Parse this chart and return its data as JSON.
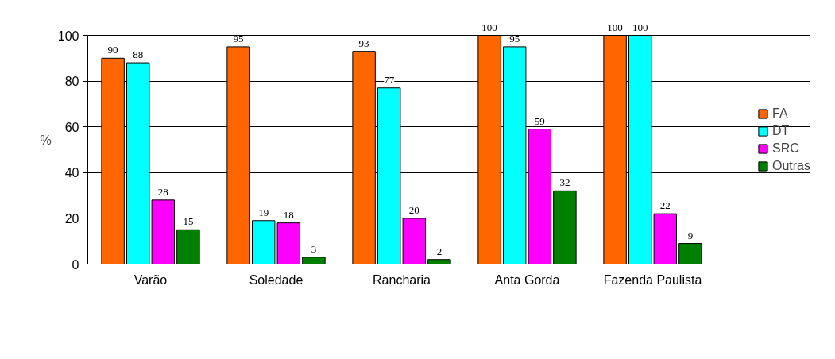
{
  "chart_data": {
    "type": "bar",
    "ylabel": "%",
    "categories": [
      "Varão",
      "Soledade",
      "Rancharia",
      "Anta Gorda",
      "Fazenda Paulista"
    ],
    "series": [
      {
        "name": "FA",
        "color": "#ff6600",
        "values": [
          90,
          95,
          93,
          100,
          100
        ]
      },
      {
        "name": "DT",
        "color": "#00ffff",
        "values": [
          88,
          19,
          77,
          95,
          100
        ]
      },
      {
        "name": "SRC",
        "color": "#ff00ff",
        "values": [
          28,
          18,
          20,
          59,
          22
        ]
      },
      {
        "name": "Outras",
        "color": "#008000",
        "values": [
          15,
          3,
          2,
          32,
          9
        ]
      }
    ],
    "ylim": [
      0,
      100
    ],
    "yticks": [
      0,
      20,
      40,
      60,
      80,
      100
    ],
    "grid": "y",
    "legend": "right",
    "data_labels": true
  }
}
